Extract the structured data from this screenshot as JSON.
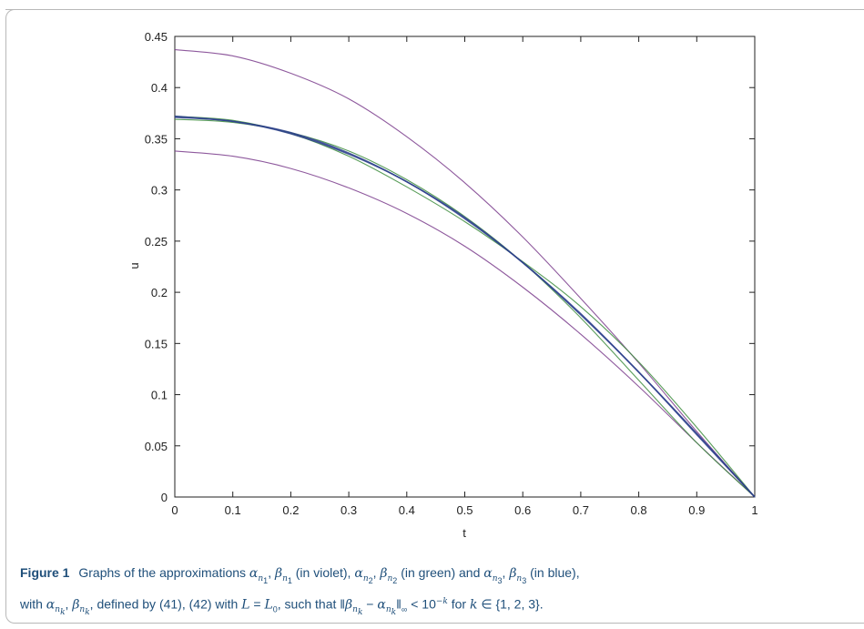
{
  "chart_data": {
    "type": "line",
    "xlabel": "t",
    "ylabel": "u",
    "xlim": [
      0,
      1
    ],
    "ylim": [
      0,
      0.45
    ],
    "xticks": [
      "0",
      "0.1",
      "0.2",
      "0.3",
      "0.4",
      "0.5",
      "0.6",
      "0.7",
      "0.8",
      "0.9",
      "1"
    ],
    "yticks": [
      "0",
      "0.05",
      "0.1",
      "0.15",
      "0.2",
      "0.25",
      "0.3",
      "0.35",
      "0.4",
      "0.45"
    ],
    "x": [
      0,
      0.1,
      0.2,
      0.3,
      0.4,
      0.5,
      0.6,
      0.7,
      0.8,
      0.9,
      1.0
    ],
    "series": [
      {
        "color": "#7a3c8c",
        "values": [
          0.437,
          0.431,
          0.414,
          0.389,
          0.352,
          0.307,
          0.254,
          0.194,
          0.131,
          0.064,
          0.0
        ]
      },
      {
        "color": "#7a3c8c",
        "values": [
          0.338,
          0.333,
          0.321,
          0.302,
          0.277,
          0.245,
          0.205,
          0.159,
          0.108,
          0.053,
          0.0
        ]
      },
      {
        "color": "#3c8c3c",
        "values": [
          0.369,
          0.366,
          0.356,
          0.338,
          0.31,
          0.274,
          0.229,
          0.175,
          0.114,
          0.053,
          0.0
        ]
      },
      {
        "color": "#3c8c3c",
        "values": [
          0.372,
          0.368,
          0.355,
          0.333,
          0.303,
          0.269,
          0.23,
          0.186,
          0.132,
          0.068,
          0.0
        ]
      },
      {
        "color": "#2d3f8c",
        "values": [
          0.371,
          0.367,
          0.355,
          0.335,
          0.308,
          0.272,
          0.229,
          0.178,
          0.122,
          0.061,
          0.0
        ]
      },
      {
        "color": "#2d3f8c",
        "values": [
          0.372,
          0.367,
          0.356,
          0.336,
          0.308,
          0.273,
          0.229,
          0.179,
          0.122,
          0.062,
          0.0
        ]
      }
    ]
  },
  "caption": {
    "label": "Figure 1",
    "text_1": "Graphs of the approximations",
    "alpha": "α",
    "beta": "β",
    "n": "n",
    "k": "k",
    "sub1": "1",
    "sub2": "2",
    "sub3": "3",
    "comma": ",",
    "in_violet": "(in violet),",
    "in_green": "(in green) and",
    "in_blue": "(in blue),",
    "line2_with": "with",
    "line2_defined": ", defined by (41), (42) with",
    "L": "L",
    "eq": "=",
    "L0sub": "0",
    "such_that": ", such that ‖",
    "minus": "−",
    "norm_end": "‖",
    "inf": "∞",
    "lt": "< 10",
    "neg_k": "−k",
    "for_k": "for",
    "in_set": "∈ {1, 2, 3}."
  }
}
